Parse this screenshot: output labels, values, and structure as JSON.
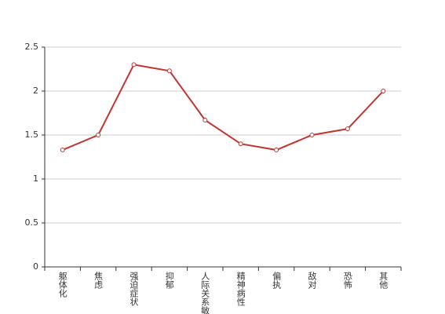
{
  "chart_data": {
    "type": "line",
    "categories": [
      "躯体化",
      "焦虑",
      "强迫症状",
      "抑郁",
      "人际关系敏感",
      "精神病性",
      "偏执",
      "敌对",
      "恐怖",
      "其他"
    ],
    "values": [
      1.33,
      1.5,
      2.3,
      2.23,
      1.67,
      1.4,
      1.33,
      1.5,
      1.57,
      2.0
    ],
    "color": "#c23531",
    "ylim": [
      0,
      2.5
    ],
    "yticks": [
      0,
      0.5,
      1,
      1.5,
      2,
      2.5
    ],
    "grid": true
  }
}
